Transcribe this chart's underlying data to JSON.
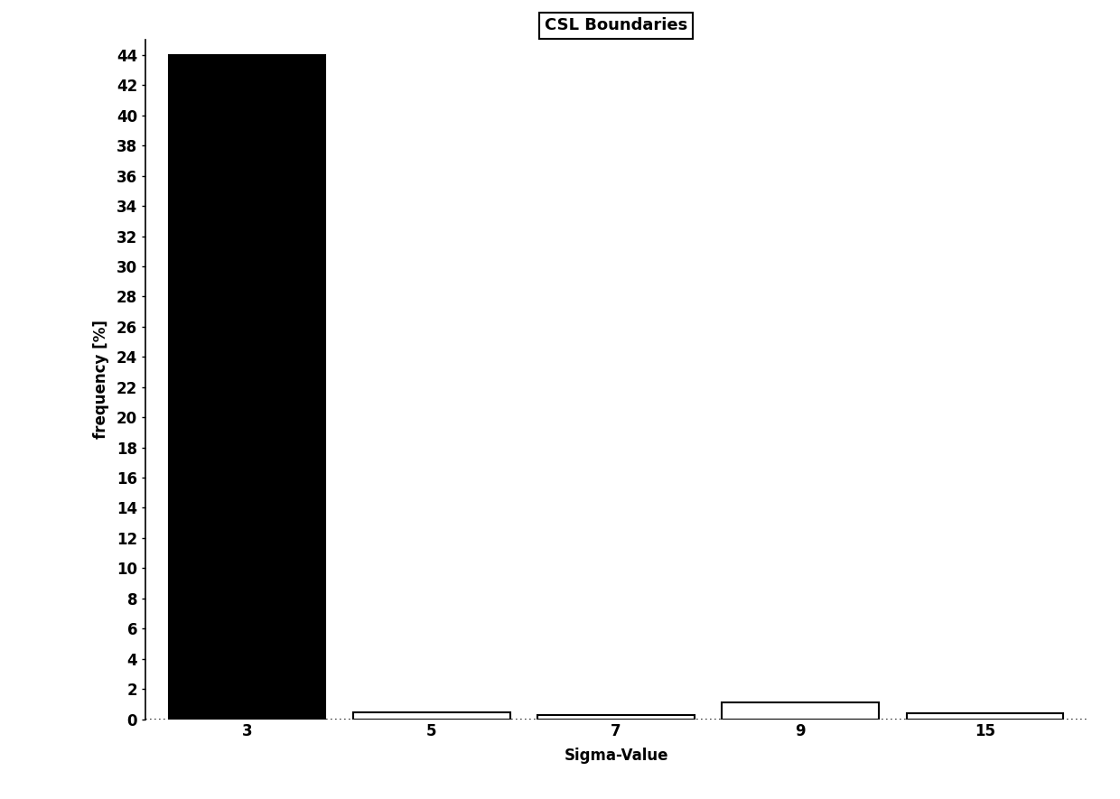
{
  "categories": [
    "3",
    "5",
    "7",
    "9",
    "15"
  ],
  "values": [
    44.0,
    0.42,
    0.28,
    1.1,
    0.38
  ],
  "bar_colors": [
    "#000000",
    "#ffffff",
    "#ffffff",
    "#ffffff",
    "#ffffff"
  ],
  "bar_edgecolors": [
    "#000000",
    "#000000",
    "#000000",
    "#000000",
    "#000000"
  ],
  "title": "CSL Boundaries",
  "xlabel": "Sigma-Value",
  "ylabel": "frequency [%]",
  "ylim": [
    0,
    45
  ],
  "yticks": [
    0,
    2,
    4,
    6,
    8,
    10,
    12,
    14,
    16,
    18,
    20,
    22,
    24,
    26,
    28,
    30,
    32,
    34,
    36,
    38,
    40,
    42,
    44
  ],
  "background_color": "#ffffff",
  "title_fontsize": 13,
  "label_fontsize": 12,
  "tick_fontsize": 12,
  "bar_width": 0.85,
  "x_positions": [
    0,
    1,
    2,
    3,
    4
  ]
}
